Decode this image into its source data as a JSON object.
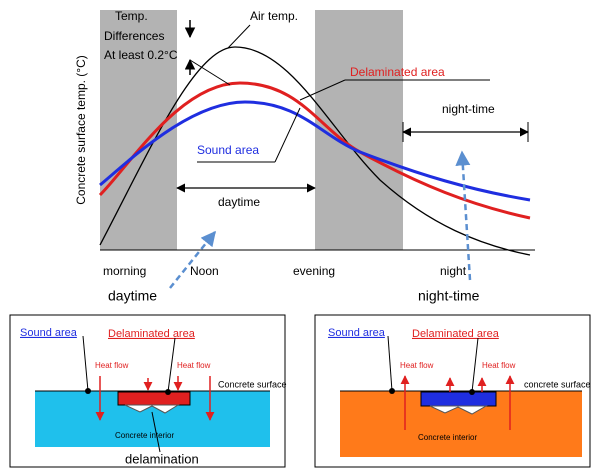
{
  "chart": {
    "y_axis_label": "Concrete surface temp. (°C)",
    "temp_difference_note": [
      "Temp.",
      "Differences",
      "At least 0.2°C"
    ],
    "air_temp_label": "Air temp.",
    "delaminated_label": "Delaminated area",
    "sound_label": "Sound area",
    "daytime_span_label": "daytime",
    "nighttime_span_label": "night-time",
    "x_labels": [
      "morning",
      "Noon",
      "evening",
      "night"
    ],
    "daytime_caption": "daytime",
    "nighttime_caption": "night-time"
  },
  "panels": [
    {
      "sound_label": "Sound area",
      "delaminated_label": "Delaminated area",
      "heat_flow_labels": [
        "Heat flow",
        "Heat flow"
      ],
      "surface_label": "Concrete surface",
      "interior_label": "Concrete interior",
      "delamination_label": "delamination"
    },
    {
      "sound_label": "Sound area",
      "delaminated_label": "Delaminated area",
      "heat_flow_labels": [
        "Heat flow",
        "Heat flow"
      ],
      "surface_label": "concrete surface",
      "interior_label": "Concrete interior"
    }
  ]
}
